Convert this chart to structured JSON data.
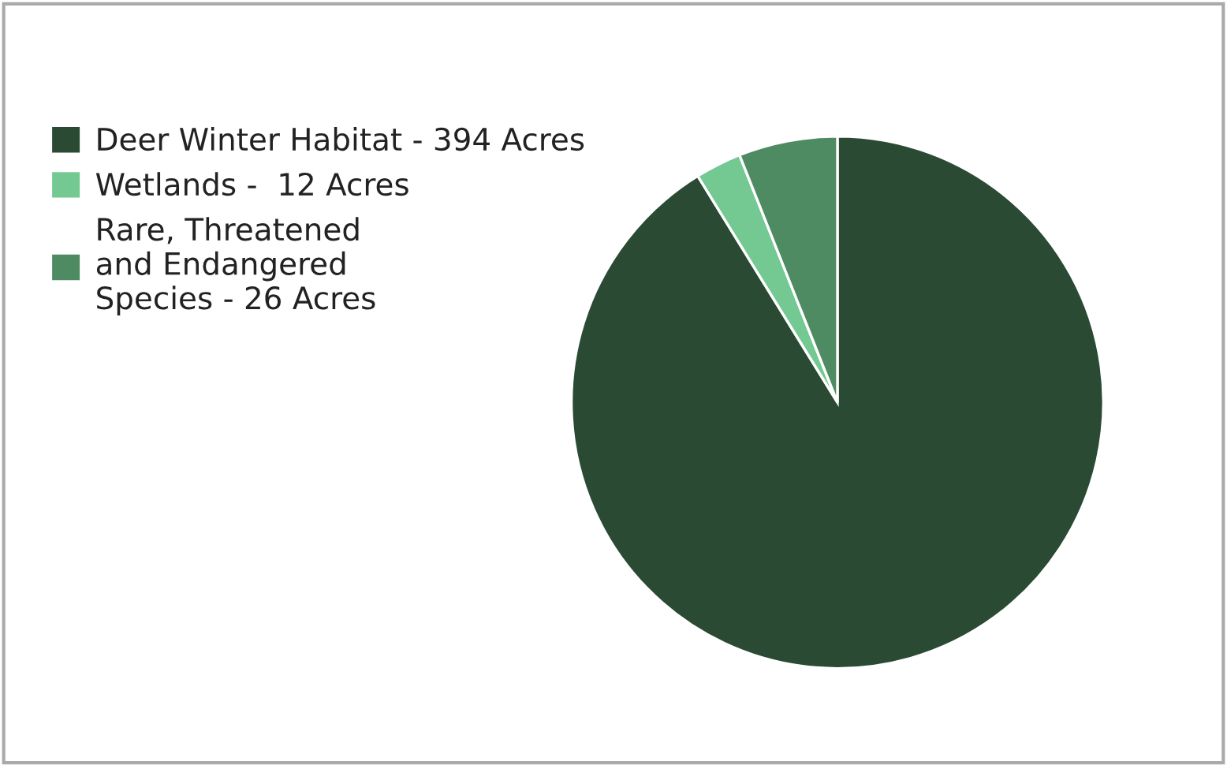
{
  "chart_data": {
    "type": "pie",
    "categories": [
      "Deer Winter Habitat - 394 Acres",
      "Wetlands -  12 Acres",
      "Rare, Threatened\nand Endangered\nSpecies - 26 Acres"
    ],
    "values": [
      91.2,
      2.8,
      6.0
    ],
    "colors": [
      "#2a4a34",
      "#74c892",
      "#4f8b62"
    ],
    "legend": "left"
  }
}
